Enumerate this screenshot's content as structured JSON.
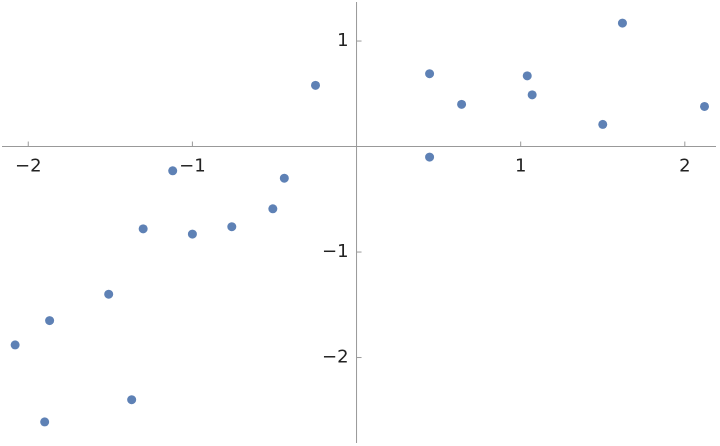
{
  "chart_data": {
    "type": "scatter",
    "color": "#5e81b5",
    "xlim": [
      -2.16,
      2.19
    ],
    "ylim": [
      -2.81,
      1.37
    ],
    "xticks": [
      {
        "value": -2,
        "label": "−2"
      },
      {
        "value": -1,
        "label": "−1"
      },
      1,
      2
    ],
    "yticks": [
      {
        "value": -2,
        "label": "−2"
      },
      {
        "value": -1,
        "label": "−1"
      },
      1
    ],
    "x": [
      -0.25,
      0.445,
      0.64,
      1.04,
      1.07,
      1.62,
      1.5,
      2.12,
      0.445,
      -1.12,
      -0.44,
      -0.51,
      -0.76,
      -1.0,
      -1.3,
      -1.51,
      -1.87,
      -2.08,
      -1.37,
      -1.9
    ],
    "y": [
      0.58,
      0.69,
      0.4,
      0.67,
      0.49,
      1.17,
      0.21,
      0.38,
      -0.1,
      -0.23,
      -0.3,
      -0.59,
      -0.76,
      -0.83,
      -0.78,
      -1.4,
      -1.65,
      -1.88,
      -2.4,
      -2.61
    ]
  }
}
